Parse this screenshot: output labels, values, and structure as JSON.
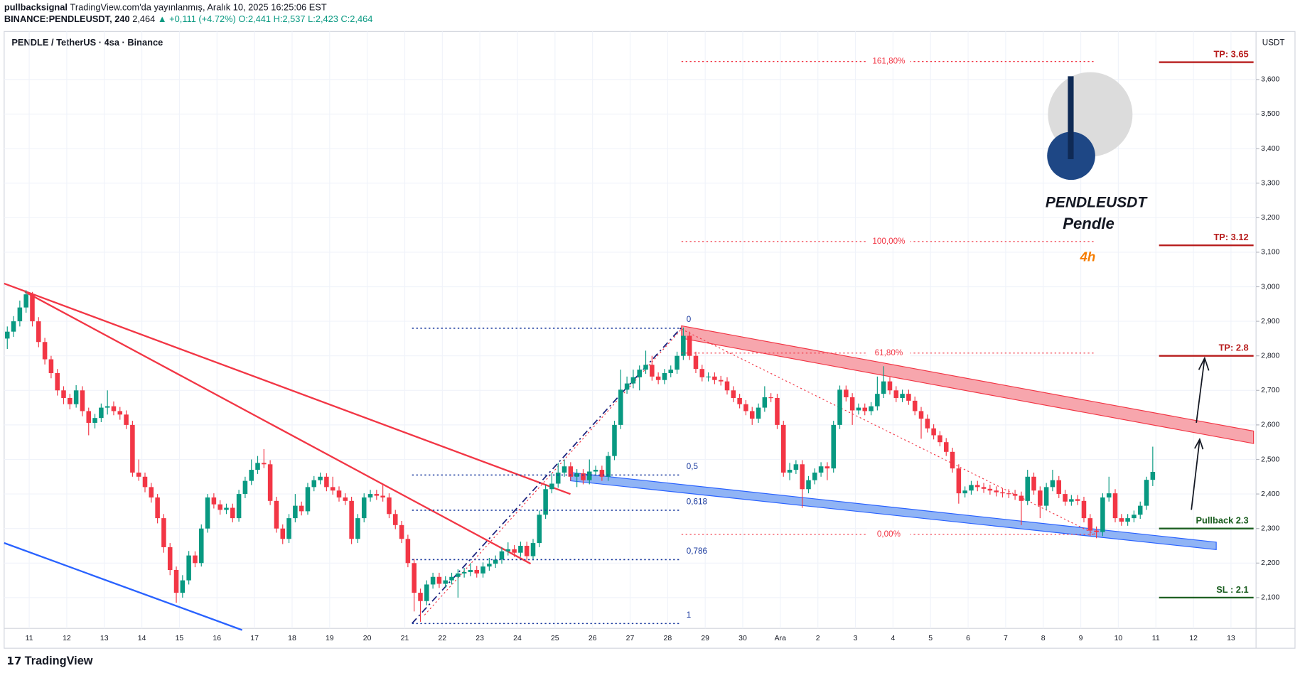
{
  "header": {
    "publisher": "pullbacksignal",
    "published": "TradingView.com'da yayınlanmış, Aralık 10, 2025 16:25:06 EST",
    "symbol": "BINANCE:PENDLEUSDT, 240",
    "last": "2,464",
    "change": "▲ +0,111 (+4.72%)",
    "ohlc": "O:2,441 H:2,537 L:2,423 C:2,464"
  },
  "footer": "TradingView",
  "chart_data": {
    "type": "candlestick",
    "title": "PENDLE / TetherUS · 4sa · Binance",
    "currency": "USDT",
    "logo": {
      "symbol": "PENDLEUSDT",
      "name": "Pendle",
      "timeframe": "4h"
    },
    "up_color": "#089981",
    "down_color": "#f23645",
    "xlim": [
      -4,
      196
    ],
    "xticks": [
      {
        "value": 0,
        "label": "11"
      },
      {
        "value": 6,
        "label": "12"
      },
      {
        "value": 12,
        "label": "13"
      },
      {
        "value": 18,
        "label": "14"
      },
      {
        "value": 24,
        "label": "15"
      },
      {
        "value": 30,
        "label": "16"
      },
      {
        "value": 36,
        "label": "17"
      },
      {
        "value": 42,
        "label": "18"
      },
      {
        "value": 48,
        "label": "19"
      },
      {
        "value": 54,
        "label": "20"
      },
      {
        "value": 60,
        "label": "21"
      },
      {
        "value": 66,
        "label": "22"
      },
      {
        "value": 72,
        "label": "23"
      },
      {
        "value": 78,
        "label": "24"
      },
      {
        "value": 84,
        "label": "25"
      },
      {
        "value": 90,
        "label": "26"
      },
      {
        "value": 96,
        "label": "27"
      },
      {
        "value": 102,
        "label": "28"
      },
      {
        "value": 108,
        "label": "29"
      },
      {
        "value": 114,
        "label": "30"
      },
      {
        "value": 120,
        "label": "Ara"
      },
      {
        "value": 126,
        "label": "2"
      },
      {
        "value": 132,
        "label": "3"
      },
      {
        "value": 138,
        "label": "4"
      },
      {
        "value": 144,
        "label": "5"
      },
      {
        "value": 150,
        "label": "6"
      },
      {
        "value": 156,
        "label": "7"
      },
      {
        "value": 162,
        "label": "8"
      },
      {
        "value": 168,
        "label": "9"
      },
      {
        "value": 174,
        "label": "10"
      },
      {
        "value": 180,
        "label": "11"
      },
      {
        "value": 186,
        "label": "12"
      },
      {
        "value": 192,
        "label": "13"
      }
    ],
    "ylim": [
      2011,
      3739
    ],
    "yticks": [
      {
        "value": 2100,
        "label": "2,100"
      },
      {
        "value": 2200,
        "label": "2,200"
      },
      {
        "value": 2300,
        "label": "2,300"
      },
      {
        "value": 2400,
        "label": "2,400"
      },
      {
        "value": 2500,
        "label": "2,500"
      },
      {
        "value": 2600,
        "label": "2,600"
      },
      {
        "value": 2700,
        "label": "2,700"
      },
      {
        "value": 2800,
        "label": "2,800"
      },
      {
        "value": 2900,
        "label": "2,900"
      },
      {
        "value": 3000,
        "label": "3,000"
      },
      {
        "value": 3100,
        "label": "3,100"
      },
      {
        "value": 3200,
        "label": "3,200"
      },
      {
        "value": 3300,
        "label": "3,300"
      },
      {
        "value": 3400,
        "label": "3,400"
      },
      {
        "value": 3500,
        "label": "3,500"
      },
      {
        "value": 3600,
        "label": "3,600"
      }
    ],
    "candles": [
      [
        2850,
        2885,
        2820,
        2870
      ],
      [
        2870,
        2915,
        2855,
        2900
      ],
      [
        2900,
        2960,
        2885,
        2940
      ],
      [
        2940,
        2990,
        2925,
        2978
      ],
      [
        2978,
        2985,
        2885,
        2900
      ],
      [
        2900,
        2912,
        2825,
        2840
      ],
      [
        2840,
        2852,
        2775,
        2790
      ],
      [
        2790,
        2800,
        2735,
        2750
      ],
      [
        2750,
        2762,
        2685,
        2700
      ],
      [
        2700,
        2712,
        2660,
        2678
      ],
      [
        2678,
        2690,
        2645,
        2660
      ],
      [
        2660,
        2715,
        2650,
        2700
      ],
      [
        2700,
        2712,
        2625,
        2640
      ],
      [
        2640,
        2650,
        2570,
        2606
      ],
      [
        2606,
        2632,
        2590,
        2620
      ],
      [
        2620,
        2662,
        2608,
        2650
      ],
      [
        2650,
        2700,
        2630,
        2654
      ],
      [
        2654,
        2668,
        2628,
        2640
      ],
      [
        2640,
        2652,
        2615,
        2630
      ],
      [
        2630,
        2642,
        2588,
        2600
      ],
      [
        2600,
        2612,
        2450,
        2462
      ],
      [
        2462,
        2500,
        2438,
        2450
      ],
      [
        2450,
        2462,
        2405,
        2420
      ],
      [
        2420,
        2432,
        2375,
        2390
      ],
      [
        2390,
        2400,
        2315,
        2330
      ],
      [
        2330,
        2342,
        2230,
        2246
      ],
      [
        2246,
        2258,
        2165,
        2180
      ],
      [
        2180,
        2190,
        2085,
        2114
      ],
      [
        2114,
        2165,
        2100,
        2150
      ],
      [
        2150,
        2235,
        2138,
        2222
      ],
      [
        2222,
        2234,
        2188,
        2200
      ],
      [
        2200,
        2312,
        2190,
        2300
      ],
      [
        2300,
        2400,
        2288,
        2390
      ],
      [
        2390,
        2402,
        2358,
        2370
      ],
      [
        2370,
        2382,
        2340,
        2354
      ],
      [
        2354,
        2372,
        2342,
        2360
      ],
      [
        2360,
        2372,
        2318,
        2330
      ],
      [
        2330,
        2412,
        2320,
        2400
      ],
      [
        2400,
        2450,
        2388,
        2438
      ],
      [
        2438,
        2500,
        2426,
        2470
      ],
      [
        2470,
        2510,
        2458,
        2490
      ],
      [
        2490,
        2530,
        2475,
        2486
      ],
      [
        2486,
        2498,
        2368,
        2380
      ],
      [
        2380,
        2392,
        2288,
        2300
      ],
      [
        2300,
        2312,
        2255,
        2270
      ],
      [
        2270,
        2342,
        2258,
        2330
      ],
      [
        2330,
        2400,
        2318,
        2366
      ],
      [
        2366,
        2378,
        2338,
        2350
      ],
      [
        2350,
        2432,
        2340,
        2420
      ],
      [
        2420,
        2452,
        2408,
        2440
      ],
      [
        2440,
        2462,
        2428,
        2450
      ],
      [
        2450,
        2460,
        2408,
        2420
      ],
      [
        2420,
        2450,
        2398,
        2410
      ],
      [
        2410,
        2422,
        2378,
        2390
      ],
      [
        2390,
        2402,
        2368,
        2380
      ],
      [
        2380,
        2392,
        2255,
        2270
      ],
      [
        2270,
        2342,
        2258,
        2330
      ],
      [
        2330,
        2402,
        2318,
        2390
      ],
      [
        2390,
        2412,
        2378,
        2400
      ],
      [
        2400,
        2412,
        2383,
        2395
      ],
      [
        2395,
        2430,
        2378,
        2390
      ],
      [
        2390,
        2402,
        2330,
        2342
      ],
      [
        2342,
        2354,
        2298,
        2310
      ],
      [
        2310,
        2322,
        2258,
        2270
      ],
      [
        2270,
        2282,
        2188,
        2200
      ],
      [
        2200,
        2212,
        2060,
        2114
      ],
      [
        2114,
        2126,
        2030,
        2090
      ],
      [
        2090,
        2150,
        2078,
        2138
      ],
      [
        2138,
        2172,
        2126,
        2160
      ],
      [
        2160,
        2172,
        2128,
        2140
      ],
      [
        2140,
        2162,
        2128,
        2150
      ],
      [
        2150,
        2172,
        2138,
        2160
      ],
      [
        2160,
        2182,
        2100,
        2170
      ],
      [
        2170,
        2186,
        2158,
        2174
      ],
      [
        2174,
        2200,
        2162,
        2180
      ],
      [
        2180,
        2192,
        2158,
        2170
      ],
      [
        2170,
        2202,
        2158,
        2190
      ],
      [
        2190,
        2215,
        2178,
        2198
      ],
      [
        2198,
        2222,
        2186,
        2210
      ],
      [
        2210,
        2246,
        2198,
        2234
      ],
      [
        2234,
        2260,
        2222,
        2240
      ],
      [
        2240,
        2252,
        2218,
        2230
      ],
      [
        2230,
        2262,
        2218,
        2250
      ],
      [
        2250,
        2262,
        2208,
        2220
      ],
      [
        2220,
        2270,
        2208,
        2258
      ],
      [
        2258,
        2352,
        2246,
        2340
      ],
      [
        2340,
        2426,
        2328,
        2414
      ],
      [
        2414,
        2460,
        2402,
        2430
      ],
      [
        2430,
        2490,
        2418,
        2462
      ],
      [
        2462,
        2500,
        2450,
        2480
      ],
      [
        2480,
        2492,
        2438,
        2450
      ],
      [
        2450,
        2472,
        2420,
        2460
      ],
      [
        2460,
        2472,
        2428,
        2440
      ],
      [
        2440,
        2500,
        2428,
        2465
      ],
      [
        2465,
        2482,
        2453,
        2470
      ],
      [
        2470,
        2482,
        2438,
        2450
      ],
      [
        2450,
        2522,
        2438,
        2510
      ],
      [
        2510,
        2612,
        2498,
        2600
      ],
      [
        2600,
        2760,
        2588,
        2702
      ],
      [
        2702,
        2740,
        2690,
        2720
      ],
      [
        2720,
        2760,
        2706,
        2738
      ],
      [
        2738,
        2772,
        2700,
        2760
      ],
      [
        2760,
        2815,
        2748,
        2774
      ],
      [
        2774,
        2800,
        2728,
        2740
      ],
      [
        2740,
        2752,
        2718,
        2730
      ],
      [
        2730,
        2762,
        2718,
        2750
      ],
      [
        2750,
        2772,
        2738,
        2760
      ],
      [
        2760,
        2812,
        2748,
        2800
      ],
      [
        2800,
        2882,
        2788,
        2858
      ],
      [
        2858,
        2870,
        2788,
        2800
      ],
      [
        2800,
        2812,
        2750,
        2762
      ],
      [
        2762,
        2774,
        2726,
        2738
      ],
      [
        2738,
        2752,
        2726,
        2740
      ],
      [
        2740,
        2752,
        2718,
        2730
      ],
      [
        2730,
        2742,
        2714,
        2726
      ],
      [
        2726,
        2738,
        2688,
        2700
      ],
      [
        2700,
        2712,
        2666,
        2678
      ],
      [
        2678,
        2690,
        2648,
        2660
      ],
      [
        2660,
        2672,
        2628,
        2640
      ],
      [
        2640,
        2652,
        2600,
        2618
      ],
      [
        2618,
        2662,
        2606,
        2650
      ],
      [
        2650,
        2712,
        2638,
        2680
      ],
      [
        2680,
        2692,
        2666,
        2678
      ],
      [
        2678,
        2690,
        2588,
        2600
      ],
      [
        2600,
        2612,
        2450,
        2462
      ],
      [
        2462,
        2490,
        2440,
        2470
      ],
      [
        2470,
        2498,
        2458,
        2486
      ],
      [
        2486,
        2498,
        2360,
        2414
      ],
      [
        2414,
        2452,
        2402,
        2440
      ],
      [
        2440,
        2474,
        2428,
        2462
      ],
      [
        2462,
        2492,
        2450,
        2480
      ],
      [
        2480,
        2492,
        2440,
        2474
      ],
      [
        2474,
        2612,
        2462,
        2600
      ],
      [
        2600,
        2714,
        2588,
        2702
      ],
      [
        2702,
        2714,
        2668,
        2680
      ],
      [
        2680,
        2692,
        2600,
        2642
      ],
      [
        2642,
        2662,
        2630,
        2650
      ],
      [
        2650,
        2662,
        2628,
        2640
      ],
      [
        2640,
        2666,
        2628,
        2654
      ],
      [
        2654,
        2740,
        2642,
        2690
      ],
      [
        2690,
        2770,
        2678,
        2726
      ],
      [
        2726,
        2738,
        2688,
        2700
      ],
      [
        2700,
        2712,
        2666,
        2678
      ],
      [
        2678,
        2702,
        2666,
        2690
      ],
      [
        2690,
        2702,
        2658,
        2670
      ],
      [
        2670,
        2682,
        2628,
        2640
      ],
      [
        2640,
        2652,
        2560,
        2618
      ],
      [
        2618,
        2630,
        2578,
        2590
      ],
      [
        2590,
        2602,
        2558,
        2570
      ],
      [
        2570,
        2582,
        2538,
        2550
      ],
      [
        2550,
        2562,
        2510,
        2522
      ],
      [
        2522,
        2534,
        2462,
        2474
      ],
      [
        2474,
        2486,
        2372,
        2402
      ],
      [
        2402,
        2422,
        2390,
        2410
      ],
      [
        2410,
        2438,
        2398,
        2426
      ],
      [
        2426,
        2438,
        2408,
        2420
      ],
      [
        2420,
        2432,
        2403,
        2415
      ],
      [
        2415,
        2427,
        2398,
        2410
      ],
      [
        2410,
        2422,
        2393,
        2405
      ],
      [
        2405,
        2417,
        2390,
        2402
      ],
      [
        2402,
        2414,
        2388,
        2400
      ],
      [
        2400,
        2412,
        2383,
        2395
      ],
      [
        2395,
        2407,
        2310,
        2380
      ],
      [
        2380,
        2470,
        2368,
        2450
      ],
      [
        2450,
        2462,
        2398,
        2410
      ],
      [
        2410,
        2422,
        2330,
        2366
      ],
      [
        2366,
        2432,
        2354,
        2420
      ],
      [
        2420,
        2470,
        2408,
        2440
      ],
      [
        2440,
        2452,
        2388,
        2400
      ],
      [
        2400,
        2412,
        2366,
        2378
      ],
      [
        2378,
        2397,
        2366,
        2385
      ],
      [
        2385,
        2397,
        2368,
        2380
      ],
      [
        2380,
        2392,
        2318,
        2330
      ],
      [
        2330,
        2342,
        2278,
        2294
      ],
      [
        2294,
        2306,
        2272,
        2290
      ],
      [
        2290,
        2402,
        2278,
        2390
      ],
      [
        2390,
        2450,
        2378,
        2402
      ],
      [
        2402,
        2414,
        2318,
        2330
      ],
      [
        2330,
        2342,
        2308,
        2320
      ],
      [
        2320,
        2342,
        2308,
        2330
      ],
      [
        2330,
        2352,
        2318,
        2340
      ],
      [
        2340,
        2378,
        2328,
        2366
      ],
      [
        2366,
        2450,
        2354,
        2441
      ],
      [
        2441,
        2537,
        2423,
        2464
      ]
    ],
    "levels": [
      {
        "label": "TP: 3.65",
        "value": 3650,
        "color": "#b71c1c"
      },
      {
        "label": "TP: 3.12",
        "value": 3120,
        "color": "#b71c1c"
      },
      {
        "label": "TP: 2.8",
        "value": 2800,
        "color": "#b71c1c"
      },
      {
        "label": "Pullback 2.3",
        "value": 2300,
        "color": "#1b5e20"
      },
      {
        "label": "SL : 2.1",
        "value": 2100,
        "color": "#1b5e20"
      }
    ],
    "fib_red": [
      {
        "label": "161,80%",
        "value": 3652
      },
      {
        "label": "100,00%",
        "value": 3131
      },
      {
        "label": "61,80%",
        "value": 2808
      },
      {
        "label": "0,00%",
        "value": 2283
      }
    ],
    "fib_blue": [
      {
        "label": "0",
        "value": 2880
      },
      {
        "label": "0,5",
        "value": 2455
      },
      {
        "label": "0,618",
        "value": 2353
      },
      {
        "label": "0,786",
        "value": 2210
      },
      {
        "label": "1",
        "value": 2025
      }
    ]
  }
}
